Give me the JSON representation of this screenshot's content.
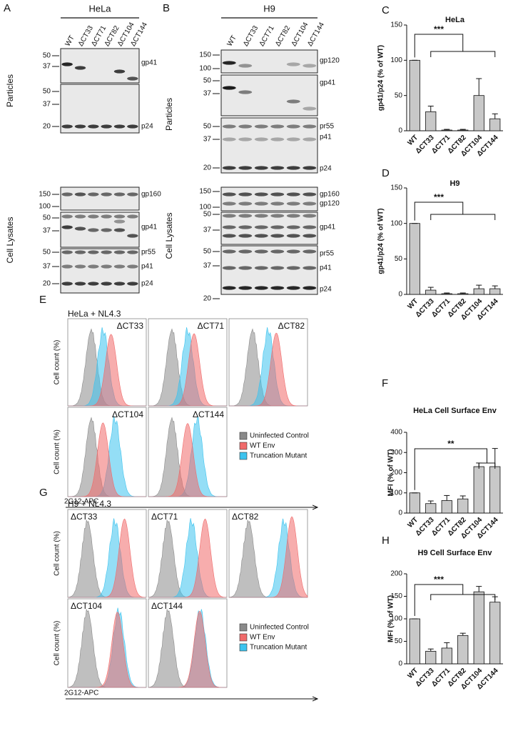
{
  "blots": [
    {
      "panel": "A",
      "title": "HeLa",
      "lanes": [
        "WT",
        "ΔCT33",
        "ΔCT71",
        "ΔCT82",
        "ΔCT104",
        "ΔCT144"
      ],
      "groups": [
        {
          "label": "Particles",
          "strips": [
            {
              "markers": [
                50,
                37
              ],
              "proteins": [
                "gp41"
              ]
            },
            {
              "markers": [
                50,
                37,
                20
              ],
              "proteins": [
                "p24"
              ]
            }
          ]
        },
        {
          "label": "Cell Lysates",
          "strips": [
            {
              "markers": [
                150,
                100
              ],
              "proteins": [
                "gp160"
              ]
            },
            {
              "markers": [
                50,
                37
              ],
              "proteins": [
                "gp41"
              ]
            },
            {
              "markers": [
                50,
                37,
                20
              ],
              "proteins": [
                "pr55",
                "p41",
                "p24"
              ]
            }
          ]
        }
      ]
    },
    {
      "panel": "B",
      "title": "H9",
      "lanes": [
        "WT",
        "ΔCT33",
        "ΔCT71",
        "ΔCT82",
        "ΔCT104",
        "ΔCT144"
      ],
      "groups": [
        {
          "label": "Particles",
          "strips": [
            {
              "markers": [
                150,
                100
              ],
              "proteins": [
                "gp120"
              ]
            },
            {
              "markers": [
                50,
                37
              ],
              "proteins": [
                "gp41"
              ]
            },
            {
              "markers": [
                50,
                37,
                20
              ],
              "proteins": [
                "pr55",
                "p41",
                "p24"
              ]
            }
          ]
        },
        {
          "label": "Cell Lysates",
          "strips": [
            {
              "markers": [
                150,
                100
              ],
              "proteins": [
                "gp160",
                "gp120"
              ]
            },
            {
              "markers": [
                50,
                37
              ],
              "proteins": [
                "gp41"
              ]
            },
            {
              "markers": [
                50,
                37,
                20
              ],
              "proteins": [
                "pr55",
                "p41",
                "p24"
              ]
            }
          ]
        }
      ]
    }
  ],
  "flow": [
    {
      "panel": "E",
      "title": "HeLa + NL4.3",
      "ylabel": "Cell count (%)",
      "xlabel": "2G12-APC",
      "plots": [
        "ΔCT33",
        "ΔCT71",
        "ΔCT82",
        "ΔCT104",
        "ΔCT144"
      ],
      "legend": [
        {
          "name": "Uninfected Control",
          "color": "#8a8a8a"
        },
        {
          "name": "WT Env",
          "color": "#f06a6a"
        },
        {
          "name": "Truncation Mutant",
          "color": "#3cc3ee"
        }
      ]
    },
    {
      "panel": "G",
      "title": "H9 + NL4.3",
      "ylabel": "Cell count (%)",
      "xlabel": "2G12-APC",
      "plots": [
        "ΔCT33",
        "ΔCT71",
        "ΔCT82",
        "ΔCT104",
        "ΔCT144"
      ],
      "legend": [
        {
          "name": "Uninfected Control",
          "color": "#8a8a8a"
        },
        {
          "name": "WT Env",
          "color": "#f06a6a"
        },
        {
          "name": "Truncation Mutant",
          "color": "#3cc3ee"
        }
      ]
    }
  ],
  "chart_data": [
    {
      "type": "bar",
      "panel": "C",
      "title": "HeLa",
      "ylabel": "gp41/p24 (% of WT)",
      "categories": [
        "WT",
        "ΔCT33",
        "ΔCT71",
        "ΔCT82",
        "ΔCT104",
        "ΔCT144"
      ],
      "values": [
        100,
        27,
        1,
        1,
        50,
        17
      ],
      "errors": [
        0,
        8,
        1,
        1,
        24,
        7
      ],
      "color": "#c8c8c8",
      "ylim": [
        0,
        150
      ],
      "yticks": [
        0,
        50,
        100,
        150
      ],
      "annotation": "***"
    },
    {
      "type": "bar",
      "panel": "D",
      "title": "H9",
      "ylabel": "gp41/p24 (% of WT)",
      "categories": [
        "WT",
        "ΔCT33",
        "ΔCT71",
        "ΔCT82",
        "ΔCT104",
        "ΔCT144"
      ],
      "values": [
        100,
        6,
        1,
        1,
        8,
        8
      ],
      "errors": [
        0,
        4,
        1,
        1,
        5,
        4
      ],
      "color": "#c8c8c8",
      "ylim": [
        0,
        150
      ],
      "yticks": [
        0,
        50,
        100,
        150
      ],
      "annotation": "***"
    },
    {
      "type": "bar",
      "panel": "F",
      "title": "HeLa Cell Surface Env",
      "ylabel": "MFI (% of WT)",
      "categories": [
        "WT",
        "ΔCT33",
        "ΔCT71",
        "ΔCT82",
        "ΔCT104",
        "ΔCT144"
      ],
      "values": [
        100,
        47,
        62,
        70,
        230,
        230
      ],
      "errors": [
        0,
        13,
        25,
        15,
        18,
        90
      ],
      "color": "#c8c8c8",
      "ylim": [
        0,
        400
      ],
      "yticks": [
        0,
        100,
        200,
        300,
        400
      ],
      "annotation": "**"
    },
    {
      "type": "bar",
      "panel": "H",
      "title": "H9 Cell Surface Env",
      "ylabel": "MFI (% of WT)",
      "categories": [
        "WT",
        "ΔCT33",
        "ΔCT71",
        "ΔCT82",
        "ΔCT104",
        "ΔCT144"
      ],
      "values": [
        100,
        28,
        35,
        63,
        160,
        137
      ],
      "errors": [
        0,
        5,
        12,
        5,
        12,
        12
      ],
      "color": "#c8c8c8",
      "ylim": [
        0,
        200
      ],
      "yticks": [
        0,
        50,
        100,
        150,
        200
      ],
      "annotation": "***"
    }
  ]
}
